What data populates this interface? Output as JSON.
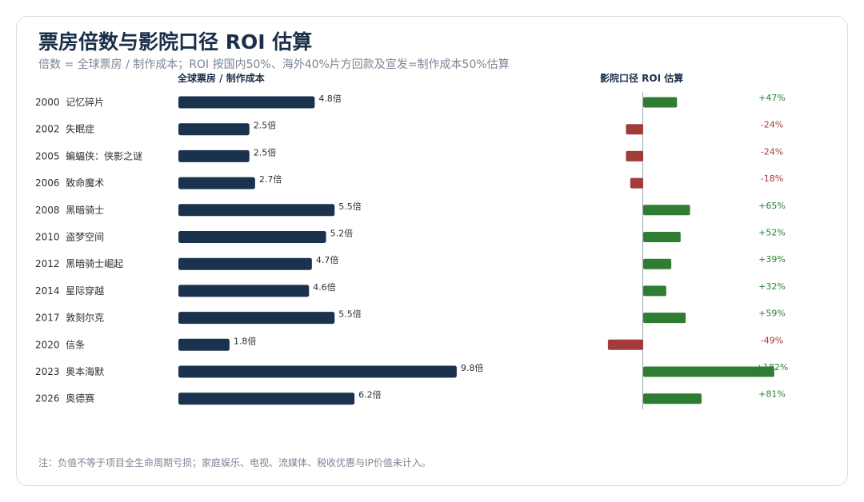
{
  "title": "票房倍数与影院口径 ROI 估算",
  "subtitle": "倍数 = 全球票房 / 制作成本；ROI 按国内50%、海外40%片方回款及宣发=制作成本50%估算",
  "note": "注：负值不等于项目全生命周期亏损；家庭娱乐、电视、流媒体、税收优惠与IP价值未计入。",
  "colors": {
    "bar": "#1b324f",
    "positive": "#2e7d32",
    "negative": "#a33b3b",
    "positive_text": "#2e7d32",
    "negative_text": "#a33b3b"
  },
  "chart_data": [
    {
      "type": "bar",
      "orientation": "horizontal",
      "title": "全球票房 / 制作成本",
      "categories": [
        "2000  记忆碎片",
        "2002  失眠症",
        "2005  蝙蝠侠：侠影之谜",
        "2006  致命魔术",
        "2008  黑暗骑士",
        "2010  盗梦空间",
        "2012  黑暗骑士崛起",
        "2014  星际穿越",
        "2017  敦刻尔克",
        "2020  信条",
        "2023  奥本海默",
        "2026  奥德赛"
      ],
      "values": [
        4.8,
        2.5,
        2.5,
        2.7,
        5.5,
        5.2,
        4.7,
        4.6,
        5.5,
        1.8,
        9.8,
        6.2
      ],
      "labels": [
        "4.8倍",
        "2.5倍",
        "2.5倍",
        "2.7倍",
        "5.5倍",
        "5.2倍",
        "4.7倍",
        "4.6倍",
        "5.5倍",
        "1.8倍",
        "9.8倍",
        "6.2倍"
      ]
    },
    {
      "type": "bar",
      "orientation": "horizontal",
      "title": "影院口径 ROI 估算",
      "categories": [
        "2000  记忆碎片",
        "2002  失眠症",
        "2005  蝙蝠侠：侠影之谜",
        "2006  致命魔术",
        "2008  黑暗骑士",
        "2010  盗梦空间",
        "2012  黑暗骑士崛起",
        "2014  星际穿越",
        "2017  敦刻尔克",
        "2020  信条",
        "2023  奥本海默",
        "2026  奥德赛"
      ],
      "values": [
        47,
        -24,
        -24,
        -18,
        65,
        52,
        39,
        32,
        59,
        -49,
        182,
        81
      ],
      "labels": [
        "+47%",
        "-24%",
        "-24%",
        "-18%",
        "+65%",
        "+52%",
        "+39%",
        "+32%",
        "+59%",
        "-49%",
        "+182%",
        "+81%"
      ]
    }
  ]
}
